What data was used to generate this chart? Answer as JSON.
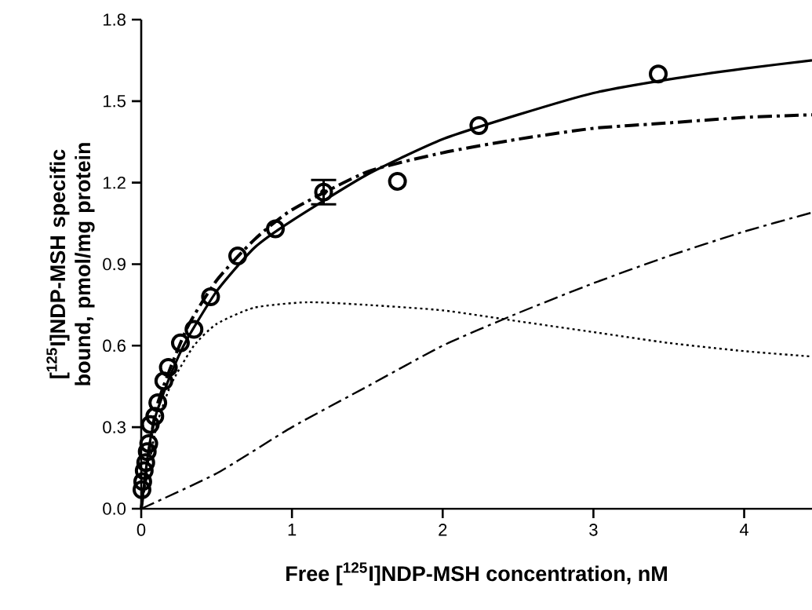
{
  "chart_data": {
    "type": "scatter",
    "xlabel": "Free [$^{125}$I]NDP-MSH concentration, nM",
    "ylabel": "[$^{125}$I]NDP-MSH specific bound, pmol/mg protein",
    "xlim": [
      0,
      4.45
    ],
    "ylim": [
      0,
      1.8
    ],
    "xticks": [
      0,
      1,
      2,
      3,
      4
    ],
    "yticks": [
      {
        "value": 0,
        "label": "0.0"
      },
      {
        "value": 0.3,
        "label": "0.3"
      },
      {
        "value": 0.6,
        "label": "0.6"
      },
      {
        "value": 0.9,
        "label": "0.9"
      },
      {
        "value": 1.2,
        "label": "1.2"
      },
      {
        "value": 1.5,
        "label": "1.5"
      },
      {
        "value": 1.8,
        "label": "1.8"
      }
    ],
    "series": [
      {
        "color": "#000000",
        "marker": "circle",
        "x": [
          0.005,
          0.01,
          0.02,
          0.03,
          0.04,
          0.05,
          0.06,
          0.09,
          0.11,
          0.15,
          0.18,
          0.26,
          0.35,
          0.46,
          0.64,
          0.89,
          1.21,
          1.7,
          2.24,
          3.43
        ],
        "values": [
          0.07,
          0.1,
          0.14,
          0.17,
          0.21,
          0.24,
          0.31,
          0.34,
          0.39,
          0.47,
          0.52,
          0.61,
          0.66,
          0.78,
          0.93,
          1.03,
          1.165,
          1.205,
          1.41,
          1.6
        ],
        "errors": [
          null,
          null,
          null,
          null,
          null,
          null,
          null,
          null,
          null,
          null,
          null,
          null,
          null,
          null,
          null,
          null,
          0.045,
          null,
          null,
          null
        ]
      },
      {
        "type": "line",
        "color": "#000000",
        "marker": "none",
        "line_style": "solid",
        "x": [
          0,
          0.05,
          0.1,
          0.2,
          0.3,
          0.5,
          0.75,
          1,
          1.5,
          2,
          2.5,
          3,
          3.5,
          4,
          4.45
        ],
        "values": [
          0,
          0.22,
          0.35,
          0.5,
          0.62,
          0.8,
          0.96,
          1.06,
          1.23,
          1.36,
          1.45,
          1.53,
          1.58,
          1.62,
          1.65
        ]
      },
      {
        "type": "line",
        "color": "#000000",
        "marker": "none",
        "line_style": "dashed",
        "x": [
          0,
          0.1,
          0.3,
          0.5,
          0.75,
          1,
          1.5,
          2,
          2.5,
          3,
          3.5,
          4,
          4.45
        ],
        "values": [
          0,
          0.37,
          0.66,
          0.84,
          0.99,
          1.1,
          1.24,
          1.31,
          1.36,
          1.4,
          1.42,
          1.44,
          1.45
        ]
      },
      {
        "type": "line",
        "color": "#000000",
        "marker": "none",
        "line_style": "dotted",
        "x": [
          0,
          0.1,
          0.2,
          0.35,
          0.5,
          0.75,
          1.1,
          1.5,
          2,
          2.5,
          3,
          3.5,
          4,
          4.45
        ],
        "values": [
          0,
          0.3,
          0.46,
          0.6,
          0.68,
          0.74,
          0.76,
          0.75,
          0.73,
          0.69,
          0.65,
          0.61,
          0.58,
          0.56
        ]
      },
      {
        "type": "line",
        "color": "#000000",
        "marker": "none",
        "line_style": "dashed",
        "x": [
          0,
          0.5,
          1,
          1.5,
          2,
          2.5,
          3,
          3.5,
          4,
          4.45
        ],
        "values": [
          0,
          0.13,
          0.3,
          0.45,
          0.6,
          0.72,
          0.83,
          0.93,
          1.02,
          1.09
        ]
      }
    ]
  }
}
